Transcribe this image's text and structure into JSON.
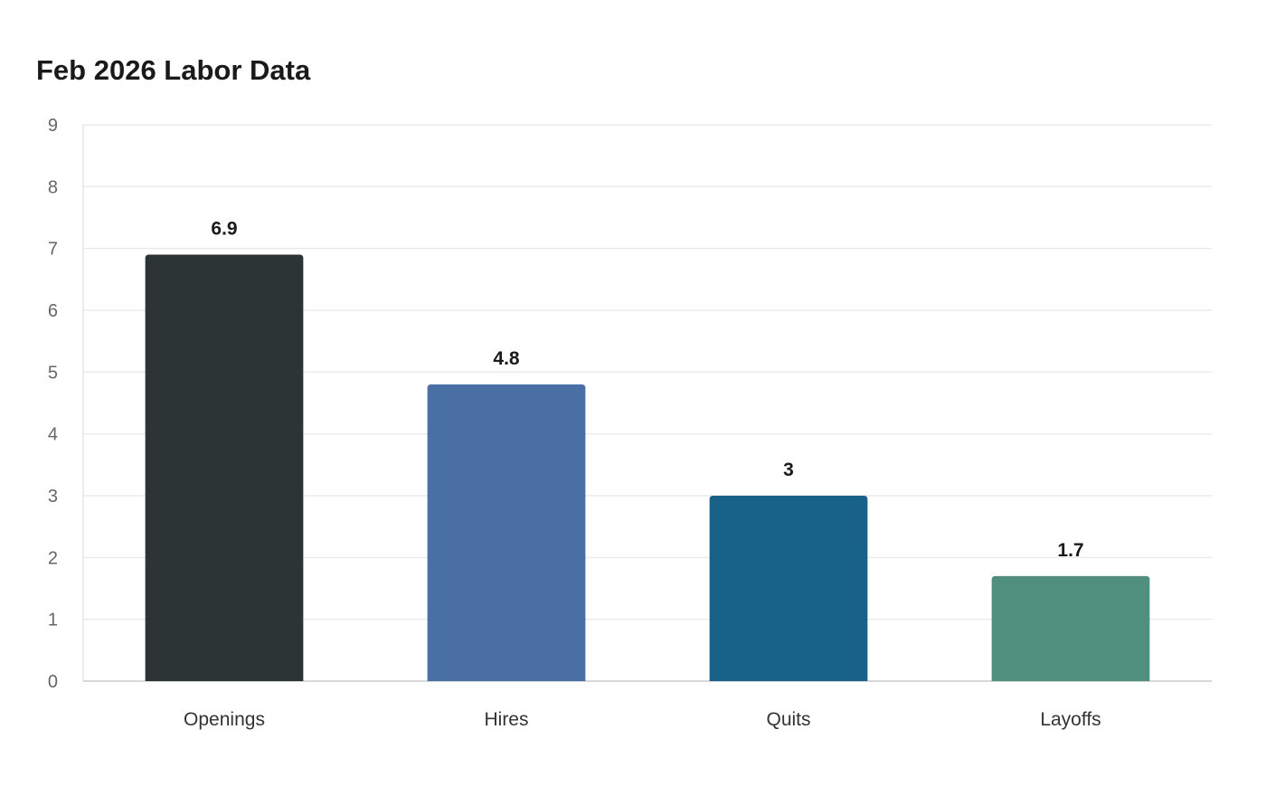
{
  "chart_data": {
    "type": "bar",
    "title": "Feb 2026 Labor Data",
    "categories": [
      "Openings",
      "Hires",
      "Quits",
      "Layoffs"
    ],
    "values": [
      6.9,
      4.8,
      3,
      1.7
    ],
    "data_labels": [
      "6.9",
      "4.8",
      "3",
      "1.7"
    ],
    "colors": [
      "#2d3436",
      "#4a6fa5",
      "#186189",
      "#4f8f7b"
    ],
    "ylim": [
      0,
      9
    ],
    "yticks": [
      0,
      1,
      2,
      3,
      4,
      5,
      6,
      7,
      8,
      9
    ],
    "grid": true,
    "xlabel": "",
    "ylabel": ""
  }
}
